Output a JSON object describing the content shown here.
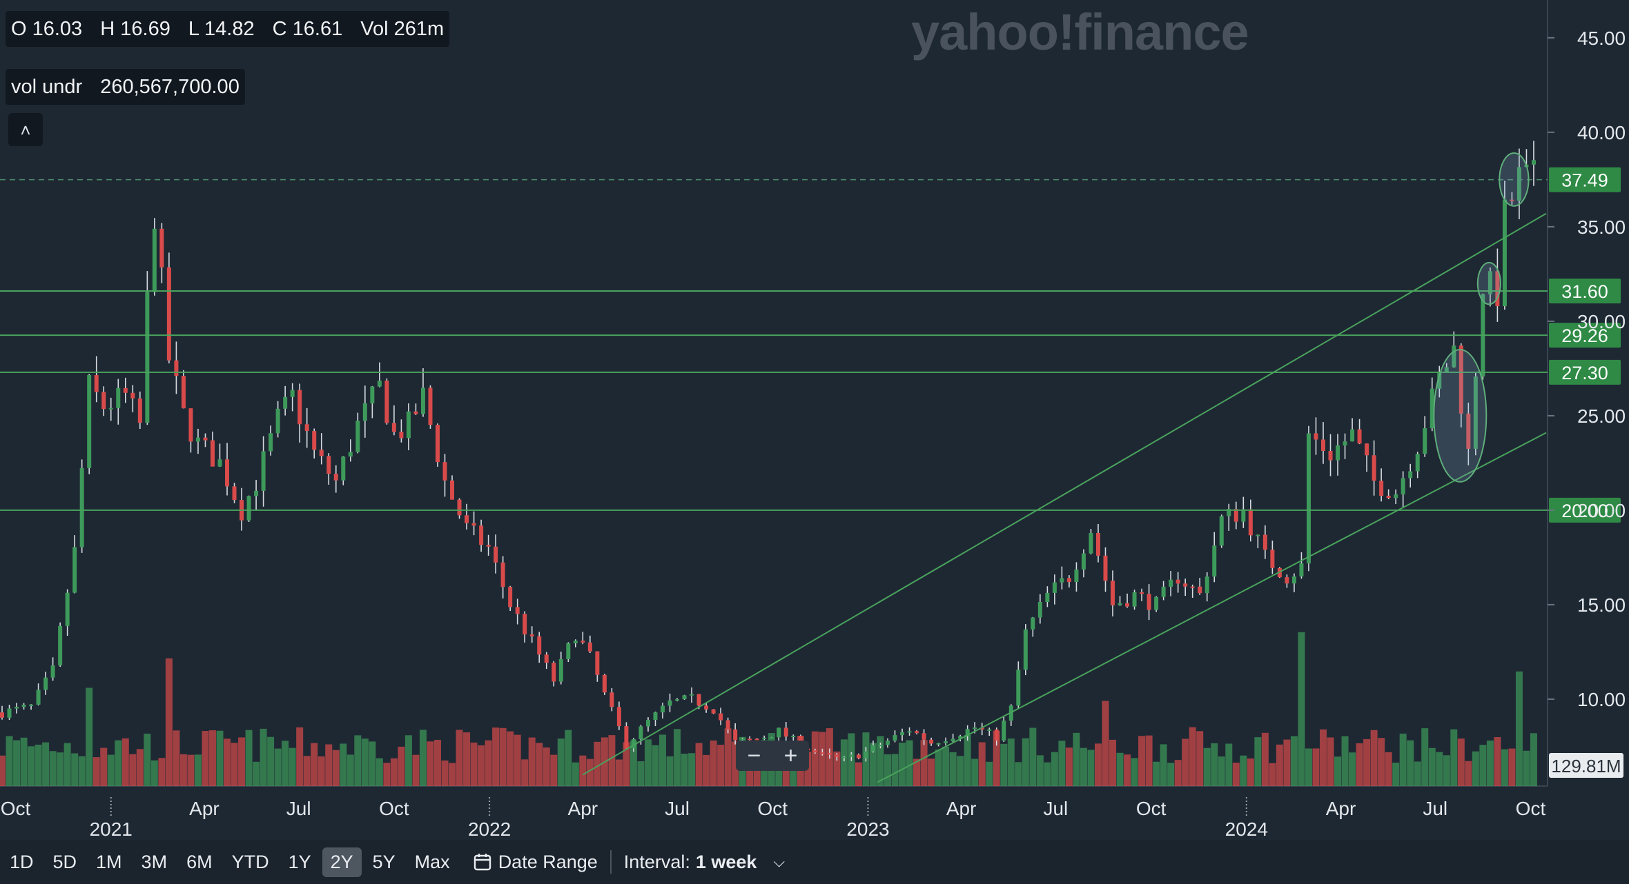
{
  "ohlc": {
    "o": "O 16.03",
    "h": "H 16.69",
    "l": "L 14.82",
    "c": "C 16.61",
    "vol": "Vol 261m"
  },
  "vol_undr": {
    "label": "vol undr",
    "value": "260,567,700.00"
  },
  "watermark": "yahoo!finance",
  "toolbar": {
    "ranges": [
      "1D",
      "5D",
      "1M",
      "3M",
      "6M",
      "YTD",
      "1Y",
      "2Y",
      "5Y",
      "Max"
    ],
    "active": "2Y",
    "date_range": "Date Range",
    "interval_label": "Interval:",
    "interval_value": "1 week"
  },
  "colors": {
    "up": "#3d9a5a",
    "down": "#d94a4a",
    "line": "#49a35c",
    "bg": "#1e2833"
  },
  "icons": {
    "collapse": "chevron-up-icon",
    "calendar": "calendar-icon",
    "dropdown": "chevron-down-icon",
    "zoom_out": "minus-icon",
    "zoom_in": "plus-icon"
  },
  "chart_data": {
    "type": "candlestick",
    "ylim": [
      5.4,
      47.0
    ],
    "y_ticks": [
      10,
      15,
      20,
      25,
      30,
      35,
      40,
      45
    ],
    "y_tick_labels": [
      "10.00",
      "15.00",
      "20.00",
      "25.00",
      "30.00",
      "35.00",
      "40.00",
      "45.00"
    ],
    "x_labels": [
      {
        "date": "2020-10-01",
        "label": "Oct"
      },
      {
        "date": "2021-01-01",
        "label": "2021"
      },
      {
        "date": "2021-04-01",
        "label": "Apr"
      },
      {
        "date": "2021-07-01",
        "label": "Jul"
      },
      {
        "date": "2021-10-01",
        "label": "Oct"
      },
      {
        "date": "2022-01-01",
        "label": "2022"
      },
      {
        "date": "2022-04-01",
        "label": "Apr"
      },
      {
        "date": "2022-07-01",
        "label": "Jul"
      },
      {
        "date": "2022-10-01",
        "label": "Oct"
      },
      {
        "date": "2023-01-01",
        "label": "2023"
      },
      {
        "date": "2023-04-01",
        "label": "Apr"
      },
      {
        "date": "2023-07-01",
        "label": "Jul"
      },
      {
        "date": "2023-10-01",
        "label": "Oct"
      },
      {
        "date": "2024-01-01",
        "label": "2024"
      },
      {
        "date": "2024-04-01",
        "label": "Apr"
      },
      {
        "date": "2024-07-01",
        "label": "Jul"
      },
      {
        "date": "2024-10-01",
        "label": "Oct"
      }
    ],
    "x_range": [
      "2020-09-16",
      "2024-10-16"
    ],
    "last_price": 37.49,
    "last_price_label": "37.49",
    "volume_label": "129.81M",
    "horizontal_levels": [
      {
        "value": 31.6,
        "label": "31.60"
      },
      {
        "value": 29.26,
        "label": "29.26"
      },
      {
        "value": 27.3,
        "label": "27.30"
      },
      {
        "value": 20.0,
        "label": "20.00"
      }
    ],
    "trend_lines": [
      {
        "from": {
          "date": "2022-04-01",
          "value": 6.0
        },
        "to": {
          "date": "2024-10-16",
          "value": 35.7
        }
      },
      {
        "from": {
          "date": "2023-01-10",
          "value": 5.6
        },
        "to": {
          "date": "2024-10-16",
          "value": 24.1
        }
      }
    ],
    "ellipses": [
      {
        "center": {
          "date": "2024-07-25",
          "value": 25.0
        },
        "span": [
          21.5,
          28.5
        ]
      },
      {
        "center": {
          "date": "2024-08-22",
          "value": 32.0
        },
        "span": [
          30.9,
          33.1
        ]
      },
      {
        "center": {
          "date": "2024-09-15",
          "value": 37.5
        },
        "span": [
          36.1,
          38.9
        ]
      }
    ],
    "close_path": [
      {
        "date": "2020-09-18",
        "value": 9.3
      },
      {
        "date": "2020-10-16",
        "value": 9.6
      },
      {
        "date": "2020-11-06",
        "value": 11.5
      },
      {
        "date": "2020-11-27",
        "value": 17.8
      },
      {
        "date": "2020-12-11",
        "value": 26.5
      },
      {
        "date": "2020-12-25",
        "value": 25.5
      },
      {
        "date": "2021-01-15",
        "value": 26.0
      },
      {
        "date": "2021-01-29",
        "value": 24.5
      },
      {
        "date": "2021-02-05",
        "value": 31.0
      },
      {
        "date": "2021-02-12",
        "value": 35.8
      },
      {
        "date": "2021-02-26",
        "value": 28.0
      },
      {
        "date": "2021-03-12",
        "value": 25.0
      },
      {
        "date": "2021-03-26",
        "value": 23.5
      },
      {
        "date": "2021-04-16",
        "value": 22.5
      },
      {
        "date": "2021-05-07",
        "value": 20.0
      },
      {
        "date": "2021-05-21",
        "value": 21.5
      },
      {
        "date": "2021-06-11",
        "value": 24.8
      },
      {
        "date": "2021-06-25",
        "value": 26.0
      },
      {
        "date": "2021-07-16",
        "value": 23.0
      },
      {
        "date": "2021-08-06",
        "value": 21.5
      },
      {
        "date": "2021-08-27",
        "value": 24.5
      },
      {
        "date": "2021-09-17",
        "value": 26.5
      },
      {
        "date": "2021-10-01",
        "value": 24.0
      },
      {
        "date": "2021-10-15",
        "value": 24.5
      },
      {
        "date": "2021-10-29",
        "value": 26.0
      },
      {
        "date": "2021-11-19",
        "value": 21.5
      },
      {
        "date": "2021-12-10",
        "value": 19.0
      },
      {
        "date": "2021-12-31",
        "value": 18.0
      },
      {
        "date": "2022-01-21",
        "value": 15.0
      },
      {
        "date": "2022-02-11",
        "value": 13.0
      },
      {
        "date": "2022-03-04",
        "value": 11.0
      },
      {
        "date": "2022-03-25",
        "value": 13.5
      },
      {
        "date": "2022-04-08",
        "value": 12.2
      },
      {
        "date": "2022-04-22",
        "value": 10.2
      },
      {
        "date": "2022-05-13",
        "value": 7.6
      },
      {
        "date": "2022-06-03",
        "value": 8.8
      },
      {
        "date": "2022-06-24",
        "value": 9.8
      },
      {
        "date": "2022-07-15",
        "value": 10.0
      },
      {
        "date": "2022-08-05",
        "value": 9.5
      },
      {
        "date": "2022-08-26",
        "value": 7.7
      },
      {
        "date": "2022-09-16",
        "value": 7.9
      },
      {
        "date": "2022-10-07",
        "value": 8.3
      },
      {
        "date": "2022-10-28",
        "value": 7.6
      },
      {
        "date": "2022-11-18",
        "value": 7.0
      },
      {
        "date": "2022-12-09",
        "value": 6.8
      },
      {
        "date": "2022-12-30",
        "value": 7.2
      },
      {
        "date": "2023-01-20",
        "value": 7.8
      },
      {
        "date": "2023-02-10",
        "value": 8.4
      },
      {
        "date": "2023-03-03",
        "value": 7.7
      },
      {
        "date": "2023-03-24",
        "value": 8.1
      },
      {
        "date": "2023-04-14",
        "value": 8.5
      },
      {
        "date": "2023-05-05",
        "value": 8.0
      },
      {
        "date": "2023-05-19",
        "value": 9.5
      },
      {
        "date": "2023-06-02",
        "value": 13.5
      },
      {
        "date": "2023-06-23",
        "value": 15.5
      },
      {
        "date": "2023-07-14",
        "value": 16.5
      },
      {
        "date": "2023-08-04",
        "value": 19.0
      },
      {
        "date": "2023-08-25",
        "value": 15.0
      },
      {
        "date": "2023-09-15",
        "value": 15.5
      },
      {
        "date": "2023-10-06",
        "value": 15.0
      },
      {
        "date": "2023-10-27",
        "value": 16.5
      },
      {
        "date": "2023-11-17",
        "value": 15.5
      },
      {
        "date": "2023-12-08",
        "value": 19.5
      },
      {
        "date": "2023-12-29",
        "value": 20.0
      },
      {
        "date": "2024-01-19",
        "value": 17.5
      },
      {
        "date": "2024-02-09",
        "value": 16.5
      },
      {
        "date": "2024-02-23",
        "value": 17.0
      },
      {
        "date": "2024-03-01",
        "value": 24.0
      },
      {
        "date": "2024-03-22",
        "value": 23.0
      },
      {
        "date": "2024-04-12",
        "value": 24.0
      },
      {
        "date": "2024-05-03",
        "value": 21.5
      },
      {
        "date": "2024-05-24",
        "value": 21.0
      },
      {
        "date": "2024-06-14",
        "value": 23.5
      },
      {
        "date": "2024-07-05",
        "value": 27.0
      },
      {
        "date": "2024-07-19",
        "value": 28.5
      },
      {
        "date": "2024-08-02",
        "value": 23.0
      },
      {
        "date": "2024-08-16",
        "value": 32.0
      },
      {
        "date": "2024-08-30",
        "value": 31.5
      },
      {
        "date": "2024-09-06",
        "value": 35.5
      },
      {
        "date": "2024-09-20",
        "value": 37.5
      },
      {
        "date": "2024-10-04",
        "value": 37.49
      }
    ],
    "volume_peaks_m": [
      {
        "date": "2021-02-26",
        "value": 195
      },
      {
        "date": "2024-02-23",
        "value": 235
      },
      {
        "date": "2024-09-20",
        "value": 175
      },
      {
        "date": "2020-12-11",
        "value": 150
      },
      {
        "date": "2023-08-18",
        "value": 130
      }
    ]
  }
}
